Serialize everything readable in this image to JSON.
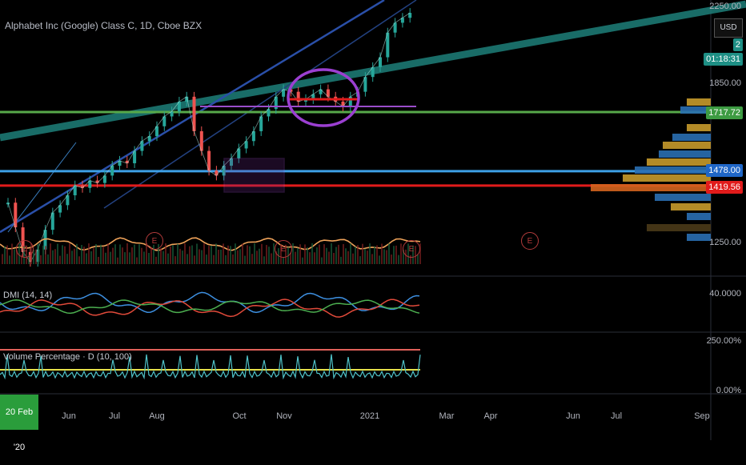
{
  "title": "Alphabet Inc (Google) Class C, 1D, Cboe BZX",
  "currency": "USD",
  "price_tags": [
    {
      "label": "2",
      "color": "#1e8f85"
    },
    {
      "label": "01:18:31",
      "color": "#1e8f85"
    },
    {
      "label": "1717.72",
      "color": "#3d9b42"
    },
    {
      "label": "1478.00",
      "color": "#1f66c7"
    },
    {
      "label": "1419.56",
      "color": "#e11b1b"
    }
  ],
  "right_axis_main": [
    {
      "label": "2250.00"
    },
    {
      "label": "1850.00"
    },
    {
      "label": "1250.00"
    }
  ],
  "right_axis_dmi": [
    {
      "label": "40.0000"
    }
  ],
  "right_axis_vol": [
    {
      "label": "250.00%"
    },
    {
      "label": "0.00%"
    }
  ],
  "panes": {
    "dmi_label": "DMI (14, 14)",
    "vol_label": "Volume Percentage · D (10, 100)"
  },
  "date_badge": "20 Feb '20",
  "x_axis": [
    "Jun",
    "Jul",
    "Aug",
    "Oct",
    "Nov",
    "2021",
    "Mar",
    "Apr",
    "Jun",
    "Jul",
    "Sep"
  ],
  "earnings_marker": "E",
  "chart_data": {
    "type": "line",
    "series": [
      {
        "values": [
          1350,
          1250,
          1150,
          1110,
          1160,
          1240,
          1310,
          1340,
          1380,
          1420,
          1410,
          1440,
          1430,
          1460,
          1500,
          1520,
          1510,
          1560,
          1600,
          1620,
          1660,
          1700,
          1720,
          1760,
          1780,
          1640,
          1560,
          1480,
          1460,
          1500,
          1530,
          1570,
          1600,
          1640,
          1700,
          1730,
          1780,
          1810,
          1800,
          1760,
          1770,
          1790,
          1810,
          1780,
          1760,
          1740,
          1780,
          1800,
          1860,
          1900,
          1940,
          2040,
          2080,
          2100,
          2120
        ]
      }
    ],
    "price_levels": [
      1717.72,
      1478.0,
      1419.56
    ]
  }
}
